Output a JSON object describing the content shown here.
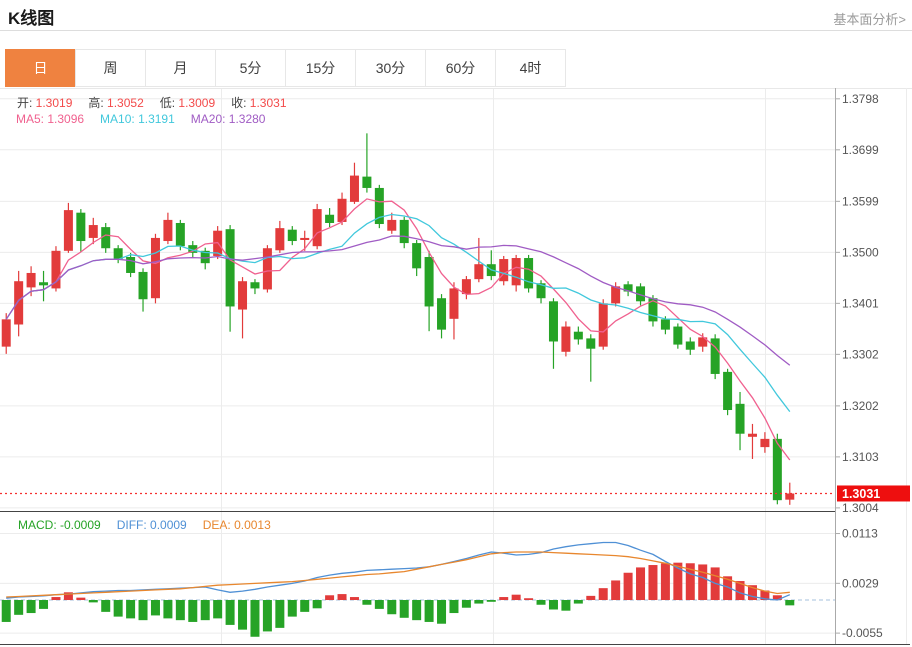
{
  "header": {
    "title": "K线图",
    "link": "基本面分析>"
  },
  "tabs": {
    "items": [
      "日",
      "周",
      "月",
      "5分",
      "15分",
      "30分",
      "60分",
      "4时"
    ],
    "names": [
      "day",
      "week",
      "month",
      "5min",
      "15min",
      "30min",
      "60min",
      "4hour"
    ],
    "selected": 0
  },
  "info": {
    "ohlc": [
      {
        "key": "open",
        "label": "开:",
        "value": "1.3019"
      },
      {
        "key": "high",
        "label": "高:",
        "value": "1.3052"
      },
      {
        "key": "low",
        "label": "低:",
        "value": "1.3009"
      },
      {
        "key": "close",
        "label": "收:",
        "value": "1.3031"
      }
    ],
    "ma": [
      {
        "key": "ma5",
        "label": "MA5:",
        "value": "1.3096"
      },
      {
        "key": "ma10",
        "label": "MA10:",
        "value": "1.3191"
      },
      {
        "key": "ma20",
        "label": "MA20:",
        "value": "1.3280"
      }
    ],
    "macd": [
      {
        "key": "macd",
        "label": "MACD:",
        "value": "-0.0009"
      },
      {
        "key": "diff",
        "label": "DIFF:",
        "value": "0.0009"
      },
      {
        "key": "dea",
        "label": "DEA:",
        "value": "0.0013"
      }
    ]
  },
  "chart_data": {
    "type": "candlestick+macd",
    "main": {
      "y_ticks": [
        "1.3798",
        "1.3699",
        "1.3599",
        "1.3500",
        "1.3401",
        "1.3302",
        "1.3202",
        "1.3103",
        "1.3004"
      ],
      "y_max": 1.3818,
      "y_min": 1.2997,
      "current_price": 1.3031,
      "current_price_label": "1.3031",
      "ma_periods": [
        5,
        10,
        20
      ],
      "candles": [
        [
          1.3316,
          1.3381,
          1.3302,
          1.3369
        ],
        [
          1.3359,
          1.3463,
          1.3336,
          1.3443
        ],
        [
          1.3431,
          1.3472,
          1.3414,
          1.3459
        ],
        [
          1.3441,
          1.3463,
          1.3404,
          1.3435
        ],
        [
          1.3429,
          1.3511,
          1.3423,
          1.3502
        ],
        [
          1.3502,
          1.3595,
          1.3498,
          1.3581
        ],
        [
          1.3576,
          1.3583,
          1.35,
          1.3521
        ],
        [
          1.3527,
          1.3566,
          1.3515,
          1.3552
        ],
        [
          1.3548,
          1.3556,
          1.3498,
          1.3507
        ],
        [
          1.3507,
          1.3513,
          1.3478,
          1.3486
        ],
        [
          1.349,
          1.3498,
          1.3451,
          1.3459
        ],
        [
          1.3461,
          1.3468,
          1.3384,
          1.3408
        ],
        [
          1.341,
          1.3535,
          1.34,
          1.3527
        ],
        [
          1.3521,
          1.3576,
          1.3515,
          1.3562
        ],
        [
          1.3556,
          1.3562,
          1.3503,
          1.3511
        ],
        [
          1.3513,
          1.3521,
          1.349,
          1.3498
        ],
        [
          1.3502,
          1.3508,
          1.3466,
          1.3478
        ],
        [
          1.3492,
          1.355,
          1.3486,
          1.3541
        ],
        [
          1.3544,
          1.3552,
          1.3345,
          1.3394
        ],
        [
          1.3388,
          1.3451,
          1.3332,
          1.3443
        ],
        [
          1.3441,
          1.3447,
          1.3418,
          1.3429
        ],
        [
          1.3427,
          1.3513,
          1.3421,
          1.3507
        ],
        [
          1.3503,
          1.356,
          1.3498,
          1.3546
        ],
        [
          1.3543,
          1.355,
          1.3513,
          1.3521
        ],
        [
          1.3523,
          1.3541,
          1.3502,
          1.3527
        ],
        [
          1.3511,
          1.3593,
          1.3505,
          1.3583
        ],
        [
          1.3572,
          1.3585,
          1.3548,
          1.3556
        ],
        [
          1.3558,
          1.3615,
          1.3552,
          1.3603
        ],
        [
          1.3597,
          1.3673,
          1.3593,
          1.3648
        ],
        [
          1.3646,
          1.373,
          1.3615,
          1.3624
        ],
        [
          1.3624,
          1.363,
          1.3546,
          1.3554
        ],
        [
          1.3541,
          1.3576,
          1.3535,
          1.3562
        ],
        [
          1.3562,
          1.3568,
          1.3507,
          1.3517
        ],
        [
          1.3517,
          1.3523,
          1.3453,
          1.3468
        ],
        [
          1.349,
          1.3502,
          1.3346,
          1.3394
        ],
        [
          1.341,
          1.3418,
          1.3332,
          1.3349
        ],
        [
          1.337,
          1.3441,
          1.333,
          1.3429
        ],
        [
          1.3418,
          1.3453,
          1.3408,
          1.3447
        ],
        [
          1.3447,
          1.3527,
          1.3441,
          1.3476
        ],
        [
          1.3476,
          1.3503,
          1.3445,
          1.3453
        ],
        [
          1.3443,
          1.3492,
          1.3435,
          1.3486
        ],
        [
          1.3435,
          1.3494,
          1.3423,
          1.3488
        ],
        [
          1.3488,
          1.3494,
          1.3421,
          1.3429
        ],
        [
          1.3439,
          1.3445,
          1.34,
          1.341
        ],
        [
          1.3404,
          1.341,
          1.3273,
          1.3326
        ],
        [
          1.3306,
          1.3365,
          1.3297,
          1.3355
        ],
        [
          1.3345,
          1.3355,
          1.332,
          1.333
        ],
        [
          1.3332,
          1.334,
          1.3248,
          1.3312
        ],
        [
          1.3316,
          1.3408,
          1.331,
          1.34
        ],
        [
          1.34,
          1.3441,
          1.3394,
          1.3433
        ],
        [
          1.3437,
          1.3443,
          1.3414,
          1.3423
        ],
        [
          1.3433,
          1.3439,
          1.3396,
          1.3404
        ],
        [
          1.341,
          1.3416,
          1.3355,
          1.3365
        ],
        [
          1.3369,
          1.3375,
          1.334,
          1.3349
        ],
        [
          1.3355,
          1.3361,
          1.3312,
          1.332
        ],
        [
          1.3326,
          1.3334,
          1.33,
          1.331
        ],
        [
          1.3316,
          1.3342,
          1.3306,
          1.3334
        ],
        [
          1.3332,
          1.334,
          1.3253,
          1.3263
        ],
        [
          1.3267,
          1.3273,
          1.3183,
          1.3193
        ],
        [
          1.3205,
          1.3228,
          1.3115,
          1.3147
        ],
        [
          1.3141,
          1.3166,
          1.3098,
          1.3147
        ],
        [
          1.3121,
          1.315,
          1.311,
          1.3137
        ],
        [
          1.3137,
          1.3147,
          1.301,
          1.3018
        ],
        [
          1.3019,
          1.3052,
          1.3009,
          1.3031
        ]
      ]
    },
    "macd": {
      "y_ticks": [
        "0.0113",
        "0.0029",
        "-0.0055"
      ],
      "y_max": 0.01468,
      "y_min": -0.00759,
      "hist": [
        -0.0037,
        -0.0025,
        -0.0022,
        -0.0015,
        0.0005,
        0.0013,
        0.0004,
        -0.0004,
        -0.002,
        -0.0028,
        -0.0031,
        -0.0034,
        -0.0026,
        -0.0031,
        -0.0034,
        -0.0037,
        -0.0034,
        -0.0031,
        -0.0042,
        -0.005,
        -0.0062,
        -0.0053,
        -0.0047,
        -0.0028,
        -0.002,
        -0.0014,
        0.0008,
        0.001,
        0.0005,
        -0.0008,
        -0.0015,
        -0.0024,
        -0.003,
        -0.0034,
        -0.0037,
        -0.004,
        -0.0022,
        -0.0013,
        -0.0006,
        -0.0003,
        0.0005,
        0.0009,
        0.0003,
        -0.0008,
        -0.0016,
        -0.0018,
        -0.0006,
        0.0007,
        0.002,
        0.0033,
        0.0046,
        0.0055,
        0.0059,
        0.0062,
        0.0063,
        0.0062,
        0.006,
        0.0055,
        0.004,
        0.0032,
        0.0025,
        0.0016,
        0.0008,
        -0.0009
      ],
      "diff": [
        0.0003,
        0.0005,
        0.0006,
        0.0007,
        0.0009,
        0.001,
        0.0012,
        0.0014,
        0.0015,
        0.0016,
        0.0016,
        0.0017,
        0.0018,
        0.0019,
        0.002,
        0.0021,
        0.0022,
        0.0017,
        0.0013,
        0.0015,
        0.0018,
        0.0022,
        0.0025,
        0.0028,
        0.0032,
        0.0038,
        0.0042,
        0.0045,
        0.0047,
        0.005,
        0.0051,
        0.0052,
        0.0053,
        0.0054,
        0.0056,
        0.006,
        0.0065,
        0.007,
        0.0076,
        0.0081,
        0.0079,
        0.0076,
        0.0077,
        0.008,
        0.0086,
        0.009,
        0.0093,
        0.0095,
        0.0097,
        0.0097,
        0.0092,
        0.0084,
        0.0077,
        0.0065,
        0.0054,
        0.0044,
        0.0038,
        0.0028,
        0.0022,
        0.0012,
        0.0006,
        0.0002,
        0.0,
        0.0009
      ],
      "dea": [
        0.0005,
        0.0006,
        0.0007,
        0.0008,
        0.0009,
        0.001,
        0.0011,
        0.0012,
        0.0013,
        0.0014,
        0.0015,
        0.0016,
        0.0017,
        0.0018,
        0.0019,
        0.0021,
        0.0023,
        0.0025,
        0.0026,
        0.0027,
        0.0028,
        0.0029,
        0.003,
        0.0031,
        0.0033,
        0.0035,
        0.0037,
        0.0039,
        0.0041,
        0.0043,
        0.0044,
        0.0046,
        0.0048,
        0.0052,
        0.0056,
        0.006,
        0.0064,
        0.0068,
        0.0073,
        0.0078,
        0.008,
        0.0081,
        0.0081,
        0.0081,
        0.008,
        0.0079,
        0.0078,
        0.0077,
        0.0076,
        0.0075,
        0.0073,
        0.007,
        0.0066,
        0.0062,
        0.0057,
        0.0052,
        0.0047,
        0.0041,
        0.0035,
        0.0028,
        0.0021,
        0.0015,
        0.0011,
        0.0013
      ]
    },
    "colors": {
      "up": "#e23b3b",
      "down": "#26a326",
      "ma5": "#f0618f",
      "ma10": "#41c8dc",
      "ma20": "#a05cc4",
      "diff": "#4f90d5",
      "dea": "#e8872e",
      "accent": "#ef8240",
      "value_red": "#f34a4a",
      "label_text": "#444444",
      "axis_text": "#555555",
      "axis_line": "#aaaaaa",
      "grid": "#ececec",
      "zero_line": "#a5c2de",
      "separator": "#444444",
      "price_line": "#f53030",
      "price_badge_bg": "#ee0f0f",
      "price_badge_text": "#ffffff"
    }
  }
}
